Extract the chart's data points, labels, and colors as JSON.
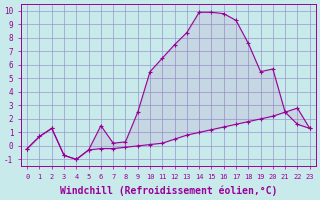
{
  "background_color": "#c8eaea",
  "grid_color": "#9999cc",
  "line_color": "#990099",
  "marker": "+",
  "xlabel": "Windchill (Refroidissement éolien,°C)",
  "xlabel_fontsize": 7,
  "xtick_labels": [
    "0",
    "1",
    "2",
    "3",
    "4",
    "5",
    "6",
    "7",
    "8",
    "9",
    "10",
    "11",
    "12",
    "13",
    "14",
    "15",
    "16",
    "17",
    "18",
    "19",
    "20",
    "21",
    "22",
    "23"
  ],
  "ylim": [
    -1.5,
    10.5
  ],
  "xlim": [
    -0.5,
    23.5
  ],
  "ytick_vals": [
    -1,
    0,
    1,
    2,
    3,
    4,
    5,
    6,
    7,
    8,
    9,
    10
  ],
  "series1_x": [
    0,
    1,
    2,
    3,
    4,
    5,
    6,
    7,
    8,
    9,
    10,
    11,
    12,
    13,
    14,
    15,
    16,
    17,
    18,
    19,
    20,
    21,
    22,
    23
  ],
  "series1_y": [
    -0.2,
    0.7,
    1.3,
    -0.7,
    -1.0,
    -0.3,
    -0.2,
    -0.2,
    -0.1,
    0.0,
    0.1,
    0.2,
    0.5,
    0.8,
    1.0,
    1.2,
    1.4,
    1.6,
    1.8,
    2.0,
    2.2,
    2.5,
    2.8,
    1.3
  ],
  "series2_x": [
    0,
    1,
    2,
    3,
    4,
    5,
    6,
    7,
    8,
    9,
    10,
    11,
    12,
    13,
    14,
    15,
    16,
    17,
    18,
    19,
    20,
    21,
    22,
    23
  ],
  "series2_y": [
    -0.2,
    0.7,
    1.3,
    -0.7,
    -1.0,
    -0.3,
    1.5,
    0.2,
    0.3,
    2.5,
    5.5,
    6.5,
    7.5,
    8.4,
    9.9,
    9.9,
    9.8,
    9.3,
    7.6,
    5.5,
    5.7,
    2.5,
    1.6,
    1.3
  ]
}
